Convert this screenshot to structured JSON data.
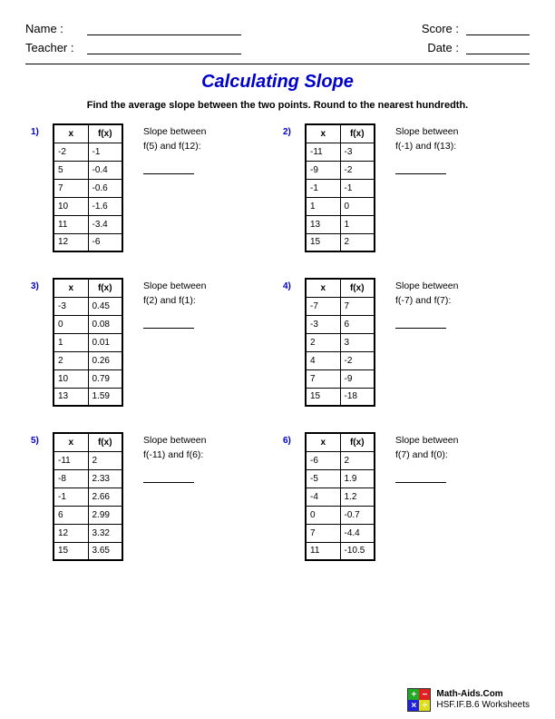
{
  "header": {
    "name_label": "Name :",
    "teacher_label": "Teacher :",
    "score_label": "Score :",
    "date_label": "Date :"
  },
  "title": "Calculating Slope",
  "instructions": "Find the average slope between the two points. Round to the nearest hundredth.",
  "col_x": "x",
  "col_fx": "f(x)",
  "slope_label": "Slope between",
  "problems": [
    {
      "num": "1)",
      "between": "f(5) and f(12):",
      "rows": [
        [
          "-2",
          "-1"
        ],
        [
          "5",
          "-0.4"
        ],
        [
          "7",
          "-0.6"
        ],
        [
          "10",
          "-1.6"
        ],
        [
          "11",
          "-3.4"
        ],
        [
          "12",
          "-6"
        ]
      ]
    },
    {
      "num": "2)",
      "between": "f(-1) and f(13):",
      "rows": [
        [
          "-11",
          "-3"
        ],
        [
          "-9",
          "-2"
        ],
        [
          "-1",
          "-1"
        ],
        [
          "1",
          "0"
        ],
        [
          "13",
          "1"
        ],
        [
          "15",
          "2"
        ]
      ]
    },
    {
      "num": "3)",
      "between": "f(2) and f(1):",
      "rows": [
        [
          "-3",
          "0.45"
        ],
        [
          "0",
          "0.08"
        ],
        [
          "1",
          "0.01"
        ],
        [
          "2",
          "0.26"
        ],
        [
          "10",
          "0.79"
        ],
        [
          "13",
          "1.59"
        ]
      ]
    },
    {
      "num": "4)",
      "between": "f(-7) and f(7):",
      "rows": [
        [
          "-7",
          "7"
        ],
        [
          "-3",
          "6"
        ],
        [
          "2",
          "3"
        ],
        [
          "4",
          "-2"
        ],
        [
          "7",
          "-9"
        ],
        [
          "15",
          "-18"
        ]
      ]
    },
    {
      "num": "5)",
      "between": "f(-11) and f(6):",
      "rows": [
        [
          "-11",
          "2"
        ],
        [
          "-8",
          "2.33"
        ],
        [
          "-1",
          "2.66"
        ],
        [
          "6",
          "2.99"
        ],
        [
          "12",
          "3.32"
        ],
        [
          "15",
          "3.65"
        ]
      ]
    },
    {
      "num": "6)",
      "between": "f(7) and f(0):",
      "rows": [
        [
          "-6",
          "2"
        ],
        [
          "-5",
          "1.9"
        ],
        [
          "-4",
          "1.2"
        ],
        [
          "0",
          "-0.7"
        ],
        [
          "7",
          "-4.4"
        ],
        [
          "11",
          "-10.5"
        ]
      ]
    }
  ],
  "footer": {
    "site": "Math-Aids.Com",
    "standard": "HSF.IF.B.6 Worksheets"
  },
  "colors": {
    "title": "#0000cc",
    "qnum": "#0000cc",
    "text": "#000000",
    "border": "#000000"
  }
}
